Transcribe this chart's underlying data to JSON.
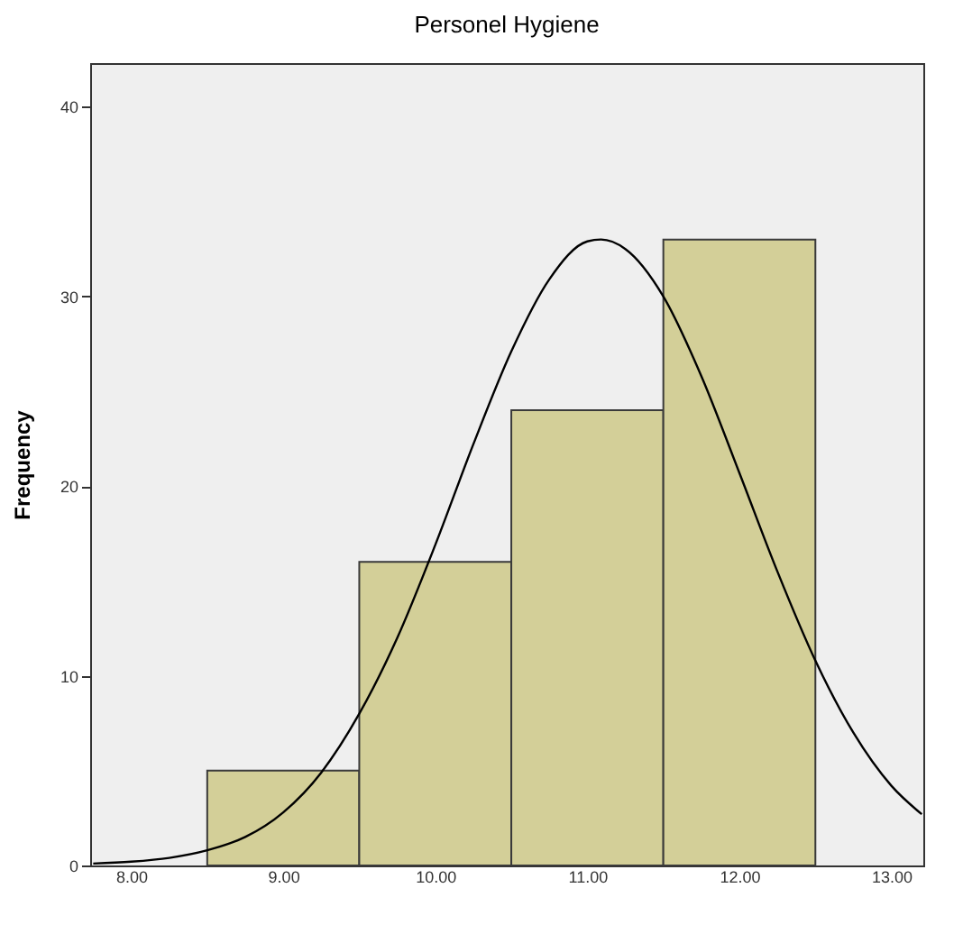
{
  "chart_data": {
    "type": "histogram",
    "title": "Personel Hygiene",
    "ylabel": "Frequency",
    "bins": [
      8.5,
      9.5,
      10.5,
      11.5,
      12.5
    ],
    "values": [
      5,
      16,
      24,
      33
    ],
    "color": "#d3cf98",
    "series": [
      {
        "type": "line",
        "color": "#000000",
        "x": [
          7.75,
          8.0,
          8.25,
          8.5,
          8.75,
          9.0,
          9.25,
          9.5,
          9.75,
          10.0,
          10.25,
          10.5,
          10.75,
          11.0,
          11.09,
          11.25,
          11.5,
          11.75,
          12.0,
          12.25,
          12.5,
          12.75,
          13.0,
          13.2
        ],
        "values": [
          0.1,
          0.2,
          0.4,
          0.8,
          1.5,
          2.8,
          4.9,
          8,
          12,
          16.9,
          22.2,
          27.1,
          30.9,
          32.9,
          33,
          32.5,
          30,
          25.8,
          20.7,
          15.5,
          10.8,
          7,
          4.2,
          2.7
        ]
      }
    ],
    "xlim": [
      7.73,
      13.21
    ],
    "xticks": [
      {
        "value": 8,
        "label": "8.00"
      },
      {
        "value": 9,
        "label": "9.00"
      },
      {
        "value": 10,
        "label": "10.00"
      },
      {
        "value": 11,
        "label": "11.00"
      },
      {
        "value": 12,
        "label": "12.00"
      },
      {
        "value": 13,
        "label": "13.00"
      }
    ],
    "ylim": [
      0,
      42.3
    ],
    "yticks": [
      0,
      10,
      20,
      30,
      40
    ],
    "grid": false
  }
}
